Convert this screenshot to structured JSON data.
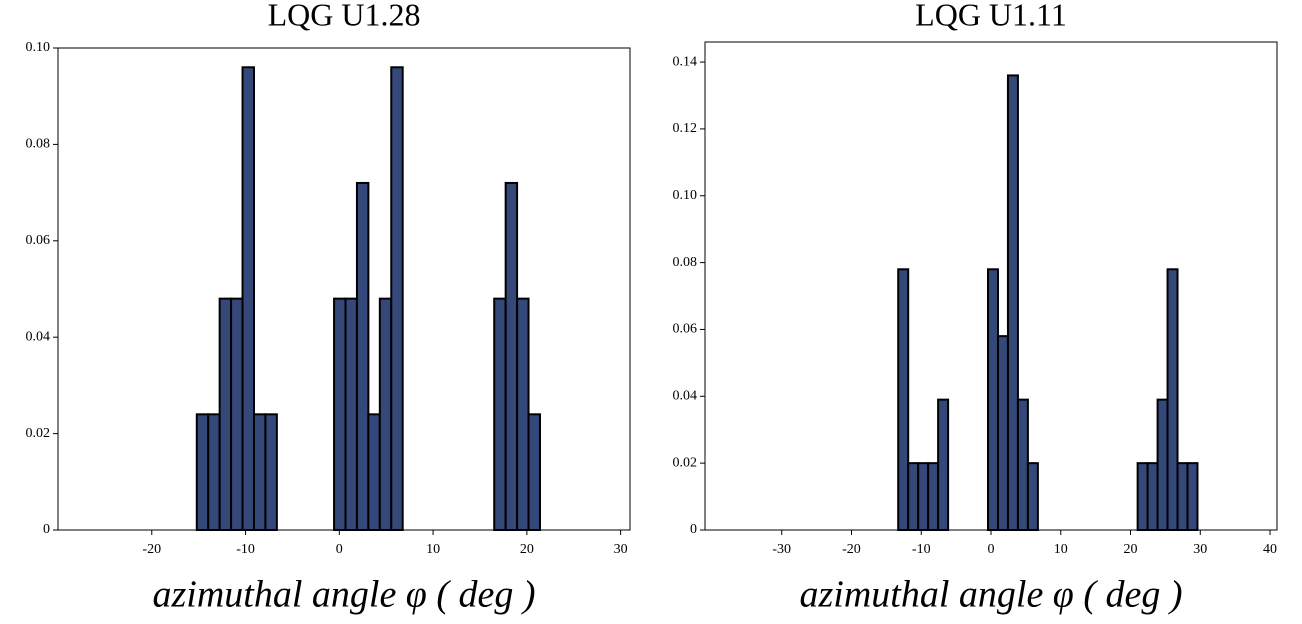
{
  "chart_data": [
    {
      "type": "histogram",
      "title": "LQG U1.28",
      "xlabel": "azimuthal angle φ ( deg )",
      "color": "#34497a",
      "bins": [
        -15.2,
        -13.98,
        -12.76,
        -11.54,
        -10.32,
        -9.1,
        -7.88,
        -6.66,
        -5.44,
        -4.22,
        -3.0,
        -1.78,
        -0.56,
        0.66,
        1.88,
        3.1,
        4.32,
        5.54,
        6.76,
        7.98,
        9.2,
        10.42,
        11.64,
        12.86,
        14.08,
        15.3,
        16.52,
        17.74,
        18.96,
        20.18,
        21.4
      ],
      "values": [
        0.024,
        0.024,
        0.048,
        0.048,
        0.096,
        0.024,
        0.024,
        0,
        0,
        0,
        0,
        0,
        0.048,
        0.048,
        0.072,
        0.024,
        0.048,
        0.096,
        0,
        0,
        0,
        0,
        0,
        0,
        0,
        0,
        0.048,
        0.072,
        0.048,
        0.024
      ],
      "xlim": [
        -30,
        31
      ],
      "xticks": [
        -20,
        -10,
        0,
        10,
        20,
        30
      ],
      "ylim": [
        0,
        0.1
      ],
      "yticks": [
        0,
        0.02,
        0.04,
        0.06,
        0.08,
        {
          "value": 0.1,
          "label": "0.10"
        }
      ]
    },
    {
      "type": "histogram",
      "title": "LQG U1.11",
      "xlabel": "azimuthal angle φ ( deg )",
      "color": "#34497a",
      "bins": [
        -13.3,
        -11.87,
        -10.44,
        -9.01,
        -7.58,
        -6.15,
        -4.72,
        -3.29,
        -1.86,
        -0.43,
        1.0,
        2.43,
        3.86,
        5.29,
        6.72,
        8.15,
        9.58,
        11.01,
        12.44,
        13.87,
        15.3,
        16.73,
        18.16,
        19.59,
        21.02,
        22.45,
        23.88,
        25.31,
        26.74,
        28.17,
        29.6
      ],
      "values": [
        0.078,
        0.02,
        0.02,
        0.02,
        0.039,
        0,
        0,
        0,
        0,
        0.078,
        0.058,
        0.136,
        0.039,
        0.02,
        0,
        0,
        0,
        0,
        0,
        0,
        0,
        0,
        0,
        0,
        0.02,
        0.02,
        0.039,
        0.078,
        0.02,
        0.02
      ],
      "xlim": [
        -41,
        41
      ],
      "xticks": [
        -30,
        -20,
        -10,
        0,
        10,
        20,
        30,
        40
      ],
      "ylim": [
        0,
        0.146
      ],
      "yticks": [
        0,
        0.02,
        0.04,
        0.06,
        0.08,
        {
          "value": 0.1,
          "label": "0.10"
        },
        0.12,
        0.14
      ]
    }
  ]
}
